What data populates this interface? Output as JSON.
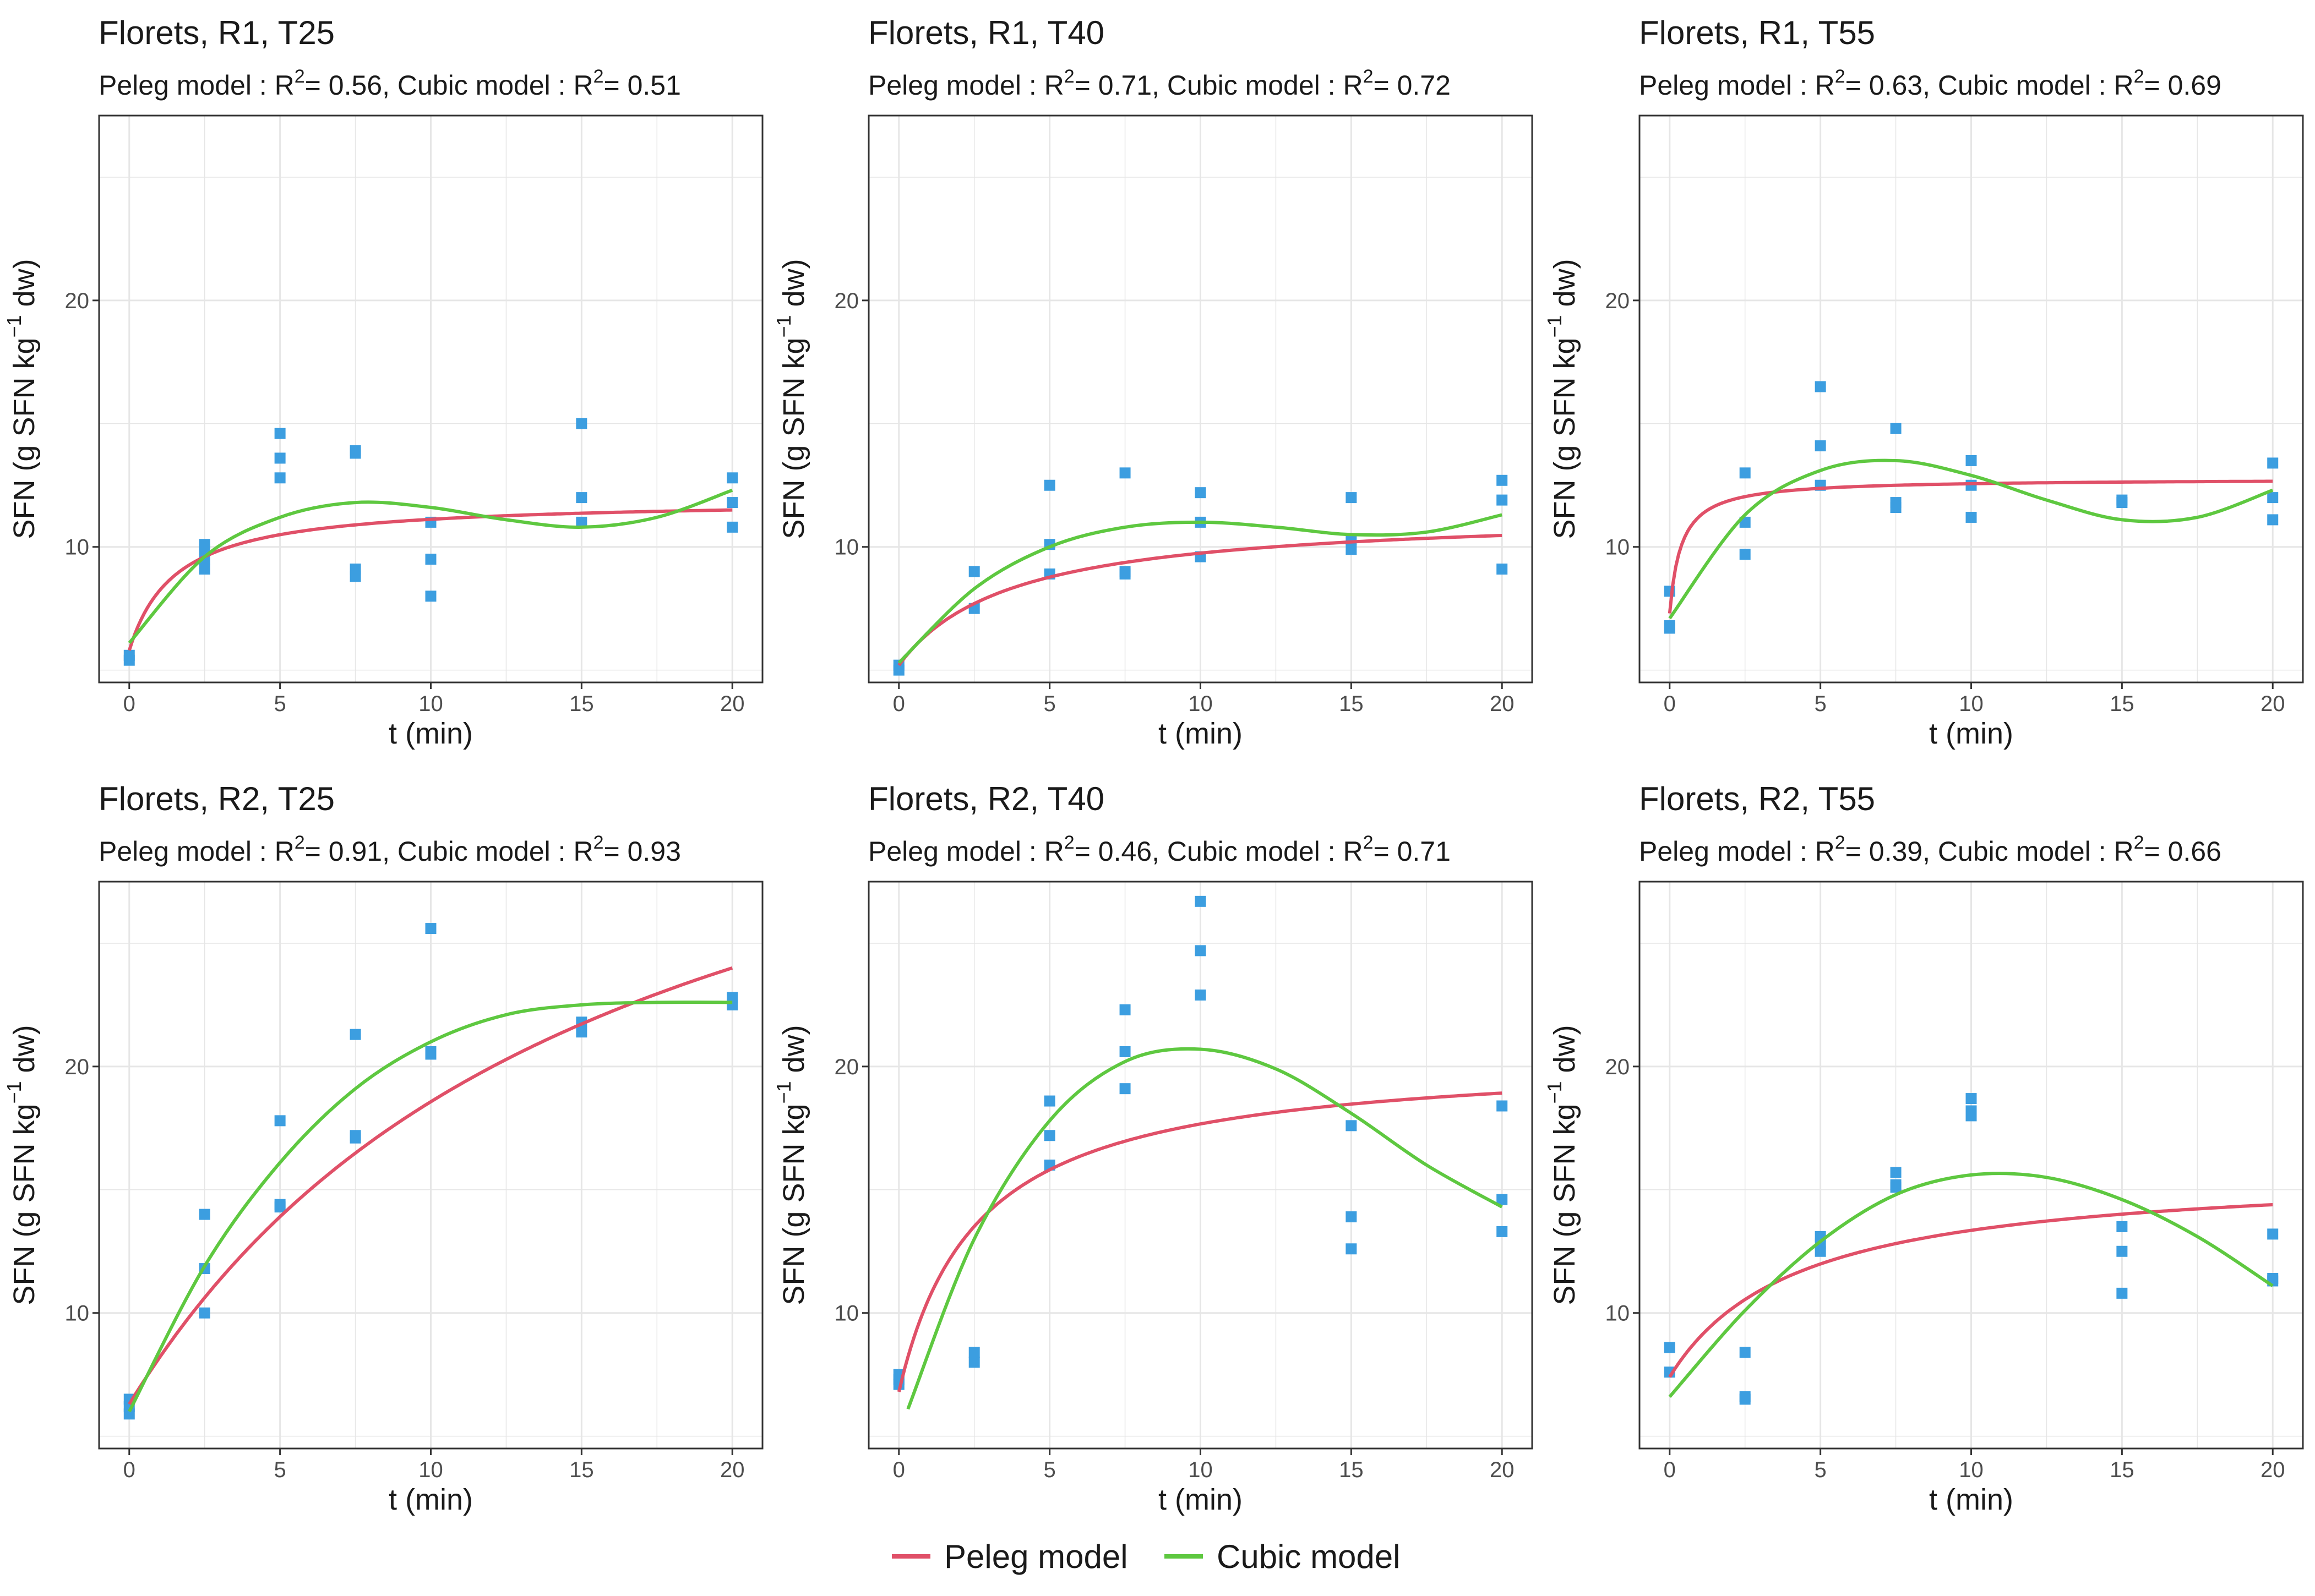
{
  "colors": {
    "peleg": "#e05068",
    "cubic": "#5ec840",
    "points": "#3c9ee0",
    "grid": "#e6e6e6",
    "frame": "#333333"
  },
  "legend": {
    "peleg_label": "Peleg model",
    "cubic_label": "Cubic model"
  },
  "chart_data": [
    {
      "type": "scatter",
      "title": "Florets, R1, T25",
      "subtitle": {
        "peleg_prefix": "Peleg model : ",
        "peleg_r2": "= 0.56",
        "sep": ", Cubic model : ",
        "cubic_r2": "= 0.51"
      },
      "xlabel": "t (min)",
      "ylabel": "SFN (g SFN kg",
      "xlim": [
        -1,
        21
      ],
      "ylim": [
        4.5,
        27.5
      ],
      "xticks": [
        0,
        5,
        10,
        15,
        20
      ],
      "yticks": [
        10,
        20
      ],
      "points": [
        [
          0,
          5.4
        ],
        [
          0,
          5.6
        ],
        [
          2.5,
          9.1
        ],
        [
          2.5,
          9.5
        ],
        [
          2.5,
          9.9
        ],
        [
          2.5,
          10.1
        ],
        [
          5,
          12.8
        ],
        [
          5,
          13.6
        ],
        [
          5,
          14.6
        ],
        [
          7.5,
          8.8
        ],
        [
          7.5,
          9.1
        ],
        [
          7.5,
          13.8
        ],
        [
          7.5,
          13.9
        ],
        [
          10,
          8.0
        ],
        [
          10,
          9.5
        ],
        [
          10,
          11.0
        ],
        [
          15,
          11.0
        ],
        [
          15,
          12.0
        ],
        [
          15,
          15.0
        ],
        [
          20,
          10.8
        ],
        [
          20,
          11.8
        ],
        [
          20,
          12.8
        ]
      ],
      "peleg": {
        "y0": 5.8,
        "k1": 0.25,
        "k2": 0.163
      },
      "cubic": {
        "x": [
          0,
          2.5,
          5,
          7.5,
          10,
          12.5,
          15,
          17.5,
          20
        ],
        "y": [
          6.1,
          9.6,
          11.2,
          11.8,
          11.6,
          11.1,
          10.8,
          11.2,
          12.3
        ]
      }
    },
    {
      "type": "scatter",
      "title": "Florets, R1, T40",
      "subtitle": {
        "peleg_prefix": "Peleg model : ",
        "peleg_r2": "= 0.71",
        "sep": ", Cubic model : ",
        "cubic_r2": "= 0.72"
      },
      "xlabel": "t (min)",
      "ylabel": "SFN (g SFN kg",
      "xlim": [
        -1,
        21
      ],
      "ylim": [
        4.5,
        27.5
      ],
      "xticks": [
        0,
        5,
        10,
        15,
        20
      ],
      "yticks": [
        10,
        20
      ],
      "points": [
        [
          0,
          5.0
        ],
        [
          0,
          5.2
        ],
        [
          2.5,
          7.5
        ],
        [
          2.5,
          9.0
        ],
        [
          5,
          8.9
        ],
        [
          5,
          10.1
        ],
        [
          5,
          12.5
        ],
        [
          7.5,
          8.9
        ],
        [
          7.5,
          9.0
        ],
        [
          7.5,
          13.0
        ],
        [
          10,
          9.6
        ],
        [
          10,
          11.0
        ],
        [
          10,
          12.2
        ],
        [
          15,
          9.9
        ],
        [
          15,
          10.3
        ],
        [
          15,
          12.0
        ],
        [
          20,
          9.1
        ],
        [
          20,
          11.9
        ],
        [
          20,
          12.7
        ]
      ],
      "peleg": {
        "y0": 5.2,
        "k1": 0.6,
        "k2": 0.16
      },
      "cubic": {
        "x": [
          0,
          2.5,
          5,
          7.5,
          10,
          12.5,
          15,
          17.5,
          20
        ],
        "y": [
          5.3,
          8.3,
          10.0,
          10.8,
          11.0,
          10.8,
          10.5,
          10.6,
          11.3
        ]
      }
    },
    {
      "type": "scatter",
      "title": "Florets, R1, T55",
      "subtitle": {
        "peleg_prefix": "Peleg model : ",
        "peleg_r2": "= 0.63",
        "sep": ", Cubic model : ",
        "cubic_r2": "= 0.69"
      },
      "xlabel": "t (min)",
      "ylabel": "SFN (g SFN kg",
      "xlim": [
        -1,
        21
      ],
      "ylim": [
        4.5,
        27.5
      ],
      "xticks": [
        0,
        5,
        10,
        15,
        20
      ],
      "yticks": [
        10,
        20
      ],
      "points": [
        [
          0,
          6.7
        ],
        [
          0,
          6.8
        ],
        [
          0,
          8.2
        ],
        [
          2.5,
          9.7
        ],
        [
          2.5,
          11.0
        ],
        [
          2.5,
          13.0
        ],
        [
          5,
          12.5
        ],
        [
          5,
          14.1
        ],
        [
          5,
          16.5
        ],
        [
          7.5,
          11.6
        ],
        [
          7.5,
          11.8
        ],
        [
          7.5,
          14.8
        ],
        [
          10,
          11.2
        ],
        [
          10,
          12.5
        ],
        [
          10,
          13.5
        ],
        [
          15,
          11.8
        ],
        [
          15,
          11.9
        ],
        [
          20,
          11.1
        ],
        [
          20,
          12.0
        ],
        [
          20,
          13.4
        ]
      ],
      "peleg": {
        "y0": 7.3,
        "k1": 0.07,
        "k2": 0.183
      },
      "cubic": {
        "x": [
          0,
          2.5,
          5,
          7.5,
          10,
          12.5,
          15,
          17.5,
          20
        ],
        "y": [
          7.1,
          11.3,
          13.1,
          13.5,
          12.9,
          11.9,
          11.1,
          11.2,
          12.3
        ]
      }
    },
    {
      "type": "scatter",
      "title": "Florets, R2, T25",
      "subtitle": {
        "peleg_prefix": "Peleg model : ",
        "peleg_r2": "= 0.91",
        "sep": ", Cubic model : ",
        "cubic_r2": "= 0.93"
      },
      "xlabel": "t (min)",
      "ylabel": "SFN (g SFN kg",
      "xlim": [
        -1,
        21
      ],
      "ylim": [
        4.5,
        27.5
      ],
      "xticks": [
        0,
        5,
        10,
        15,
        20
      ],
      "yticks": [
        10,
        20
      ],
      "points": [
        [
          0,
          5.9
        ],
        [
          0,
          6.2
        ],
        [
          0,
          6.5
        ],
        [
          2.5,
          10.0
        ],
        [
          2.5,
          11.8
        ],
        [
          2.5,
          14.0
        ],
        [
          5,
          14.3
        ],
        [
          5,
          14.4
        ],
        [
          5,
          17.8
        ],
        [
          7.5,
          17.1
        ],
        [
          7.5,
          17.2
        ],
        [
          7.5,
          21.3
        ],
        [
          10,
          20.5
        ],
        [
          10,
          20.6
        ],
        [
          10,
          25.6
        ],
        [
          15,
          21.4
        ],
        [
          15,
          21.8
        ],
        [
          20,
          22.5
        ],
        [
          20,
          22.8
        ]
      ],
      "peleg": {
        "y0": 6.3,
        "k1": 0.5,
        "k2": 0.0315
      },
      "cubic": {
        "x": [
          0,
          2.5,
          5,
          7.5,
          10,
          12.5,
          15,
          17.5,
          20
        ],
        "y": [
          6.0,
          11.9,
          16.1,
          19.1,
          21.0,
          22.1,
          22.5,
          22.6,
          22.6
        ]
      }
    },
    {
      "type": "scatter",
      "title": "Florets, R2, T40",
      "subtitle": {
        "peleg_prefix": "Peleg model : ",
        "peleg_r2": "= 0.46",
        "sep": ", Cubic model : ",
        "cubic_r2": "= 0.71"
      },
      "xlabel": "t (min)",
      "ylabel": "SFN (g SFN kg",
      "xlim": [
        -1,
        21
      ],
      "ylim": [
        4.5,
        27.5
      ],
      "xticks": [
        0,
        5,
        10,
        15,
        20
      ],
      "yticks": [
        10,
        20
      ],
      "points": [
        [
          0,
          7.1
        ],
        [
          0,
          7.3
        ],
        [
          0,
          7.5
        ],
        [
          2.5,
          8.0
        ],
        [
          2.5,
          8.4
        ],
        [
          5,
          16.0
        ],
        [
          5,
          17.2
        ],
        [
          5,
          18.6
        ],
        [
          7.5,
          19.1
        ],
        [
          7.5,
          20.6
        ],
        [
          7.5,
          22.3
        ],
        [
          10,
          22.9
        ],
        [
          10,
          24.7
        ],
        [
          10,
          26.7
        ],
        [
          15,
          12.6
        ],
        [
          15,
          13.9
        ],
        [
          15,
          17.6
        ],
        [
          20,
          13.3
        ],
        [
          20,
          14.6
        ],
        [
          20,
          18.4
        ]
      ],
      "peleg": {
        "y0": 6.8,
        "k1": 0.19,
        "k2": 0.073
      },
      "cubic": {
        "x": [
          0.3,
          2.5,
          5,
          7.5,
          10,
          12.5,
          15,
          17.5,
          20
        ],
        "y": [
          6.1,
          13.0,
          17.8,
          20.2,
          20.7,
          19.9,
          18.1,
          16.0,
          14.3
        ]
      }
    },
    {
      "type": "scatter",
      "title": "Florets, R2, T55",
      "subtitle": {
        "peleg_prefix": "Peleg model : ",
        "peleg_r2": "= 0.39",
        "sep": ", Cubic model : ",
        "cubic_r2": "= 0.66"
      },
      "xlabel": "t (min)",
      "ylabel": "SFN (g SFN kg",
      "xlim": [
        -1,
        21
      ],
      "ylim": [
        4.5,
        27.5
      ],
      "xticks": [
        0,
        5,
        10,
        15,
        20
      ],
      "yticks": [
        10,
        20
      ],
      "points": [
        [
          0,
          7.6
        ],
        [
          0,
          8.6
        ],
        [
          2.5,
          6.5
        ],
        [
          2.5,
          6.6
        ],
        [
          2.5,
          8.4
        ],
        [
          5,
          12.5
        ],
        [
          5,
          12.8
        ],
        [
          5,
          13.1
        ],
        [
          7.5,
          15.1
        ],
        [
          7.5,
          15.2
        ],
        [
          7.5,
          15.7
        ],
        [
          10,
          18.0
        ],
        [
          10,
          18.2
        ],
        [
          10,
          18.7
        ],
        [
          15,
          10.8
        ],
        [
          15,
          12.5
        ],
        [
          15,
          13.5
        ],
        [
          20,
          11.3
        ],
        [
          20,
          11.4
        ],
        [
          20,
          13.2
        ]
      ],
      "peleg": {
        "y0": 7.4,
        "k1": 0.5,
        "k2": 0.118
      },
      "cubic": {
        "x": [
          0,
          2.5,
          5,
          7.5,
          10,
          12.5,
          15,
          17.5,
          20
        ],
        "y": [
          6.6,
          10.1,
          12.9,
          14.8,
          15.6,
          15.5,
          14.6,
          13.1,
          11.1
        ]
      }
    }
  ]
}
